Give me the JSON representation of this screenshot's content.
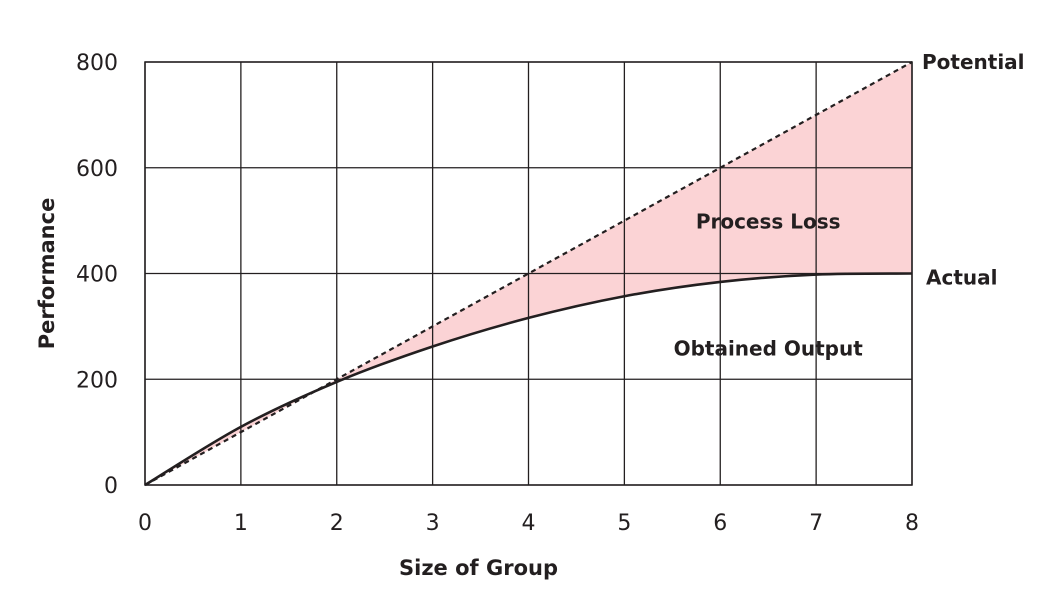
{
  "chart_data": {
    "type": "line",
    "xlabel": "Size of Group",
    "ylabel": "Performance",
    "xlim": [
      0,
      8
    ],
    "ylim": [
      0,
      800
    ],
    "x_ticks": [
      "0",
      "1",
      "2",
      "3",
      "4",
      "5",
      "6",
      "7",
      "8"
    ],
    "y_ticks": [
      "0",
      "200",
      "400",
      "600",
      "800"
    ],
    "grid": true,
    "series": [
      {
        "name": "Potential",
        "style": "dashed",
        "color": "#231f20",
        "x": [
          0,
          1,
          2,
          3,
          4,
          5,
          6,
          7,
          8
        ],
        "y": [
          0,
          100,
          200,
          300,
          400,
          500,
          600,
          700,
          800
        ]
      },
      {
        "name": "Actual",
        "style": "solid",
        "color": "#231f20",
        "x": [
          0,
          1,
          2,
          3,
          4,
          5,
          6,
          7,
          8
        ],
        "y": [
          0,
          110,
          195,
          262,
          316,
          357,
          384,
          398,
          400
        ]
      }
    ],
    "annotations": {
      "process_loss": "Process Loss",
      "obtained_output": "Obtained Output"
    },
    "fill_color": "#fbd3d5"
  }
}
